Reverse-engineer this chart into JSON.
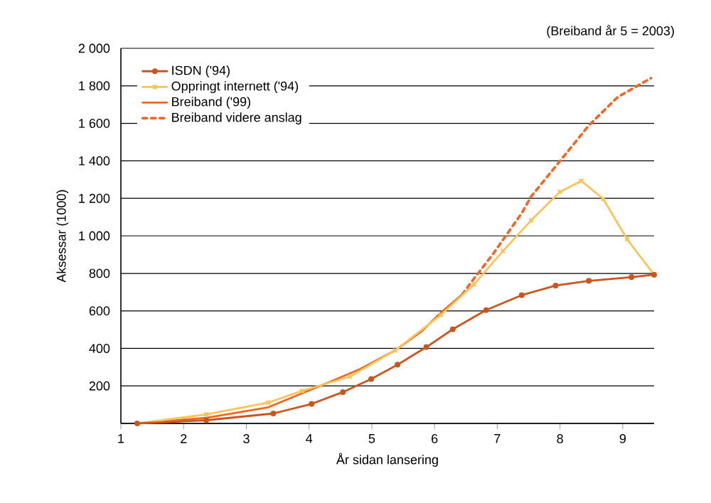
{
  "chart_data": {
    "type": "line",
    "xlabel": "År sidan lansering",
    "ylabel": "Aksessar (1000)",
    "annotations": [
      "(Breiband år 5 = 2003)"
    ],
    "xlim": [
      1,
      9.5
    ],
    "xticks": [
      1,
      2,
      3,
      4,
      5,
      6,
      7,
      8,
      9
    ],
    "ylim": [
      0,
      2000
    ],
    "yticks": [
      {
        "value": 0,
        "label": null
      },
      200,
      400,
      600,
      800,
      {
        "value": 1000,
        "label": "1 000"
      },
      {
        "value": 1200,
        "label": "1 200"
      },
      {
        "value": 1400,
        "label": "1 400"
      },
      {
        "value": 1600,
        "label": "1 600"
      },
      {
        "value": 1800,
        "label": "1 800"
      },
      {
        "value": 2000,
        "label": "2 000"
      }
    ],
    "grid": "y",
    "legend": "top left",
    "series": [
      {
        "name": "ISDN ('94)",
        "color": "#c8561e",
        "marker": "circle",
        "line_style": "solid",
        "x": [
          1.26,
          2.36,
          3.43,
          4.04,
          4.54,
          4.99,
          5.41,
          5.87,
          6.29,
          6.82,
          7.39,
          7.93,
          8.46,
          9.14,
          9.5
        ],
        "values": [
          0,
          17,
          53,
          104,
          167,
          237,
          313,
          407,
          502,
          604,
          684,
          735,
          760,
          780,
          793
        ]
      },
      {
        "name": "Oppringt internett ('94)",
        "color": "#fcc35a",
        "marker": "cross",
        "line_style": "solid",
        "x": [
          1.26,
          2.36,
          3.35,
          3.89,
          4.65,
          5.37,
          6.1,
          6.63,
          7.09,
          7.54,
          8.0,
          8.34,
          8.69,
          9.07,
          9.5
        ],
        "values": [
          0,
          48,
          111,
          174,
          250,
          389,
          578,
          742,
          919,
          1083,
          1235,
          1293,
          1197,
          982,
          793
        ]
      },
      {
        "name": "Breiband ('99)",
        "color": "#f26522",
        "marker": "none",
        "line_style": "solid",
        "x": [
          1.26,
          2.36,
          3.35,
          4.12,
          4.8,
          5.37,
          5.79,
          6.1,
          6.44
        ],
        "values": [
          0,
          30,
          86,
          192,
          288,
          389,
          490,
          591,
          687
        ]
      },
      {
        "name": "Breiband videre anslag",
        "color": "#f26522",
        "marker": "none",
        "line_style": "dashed",
        "x": [
          6.44,
          6.59,
          6.94,
          7.39,
          7.54,
          8.0,
          8.46,
          8.92,
          9.45
        ],
        "values": [
          687,
          755,
          907,
          1121,
          1210,
          1399,
          1589,
          1740,
          1841
        ]
      }
    ]
  }
}
